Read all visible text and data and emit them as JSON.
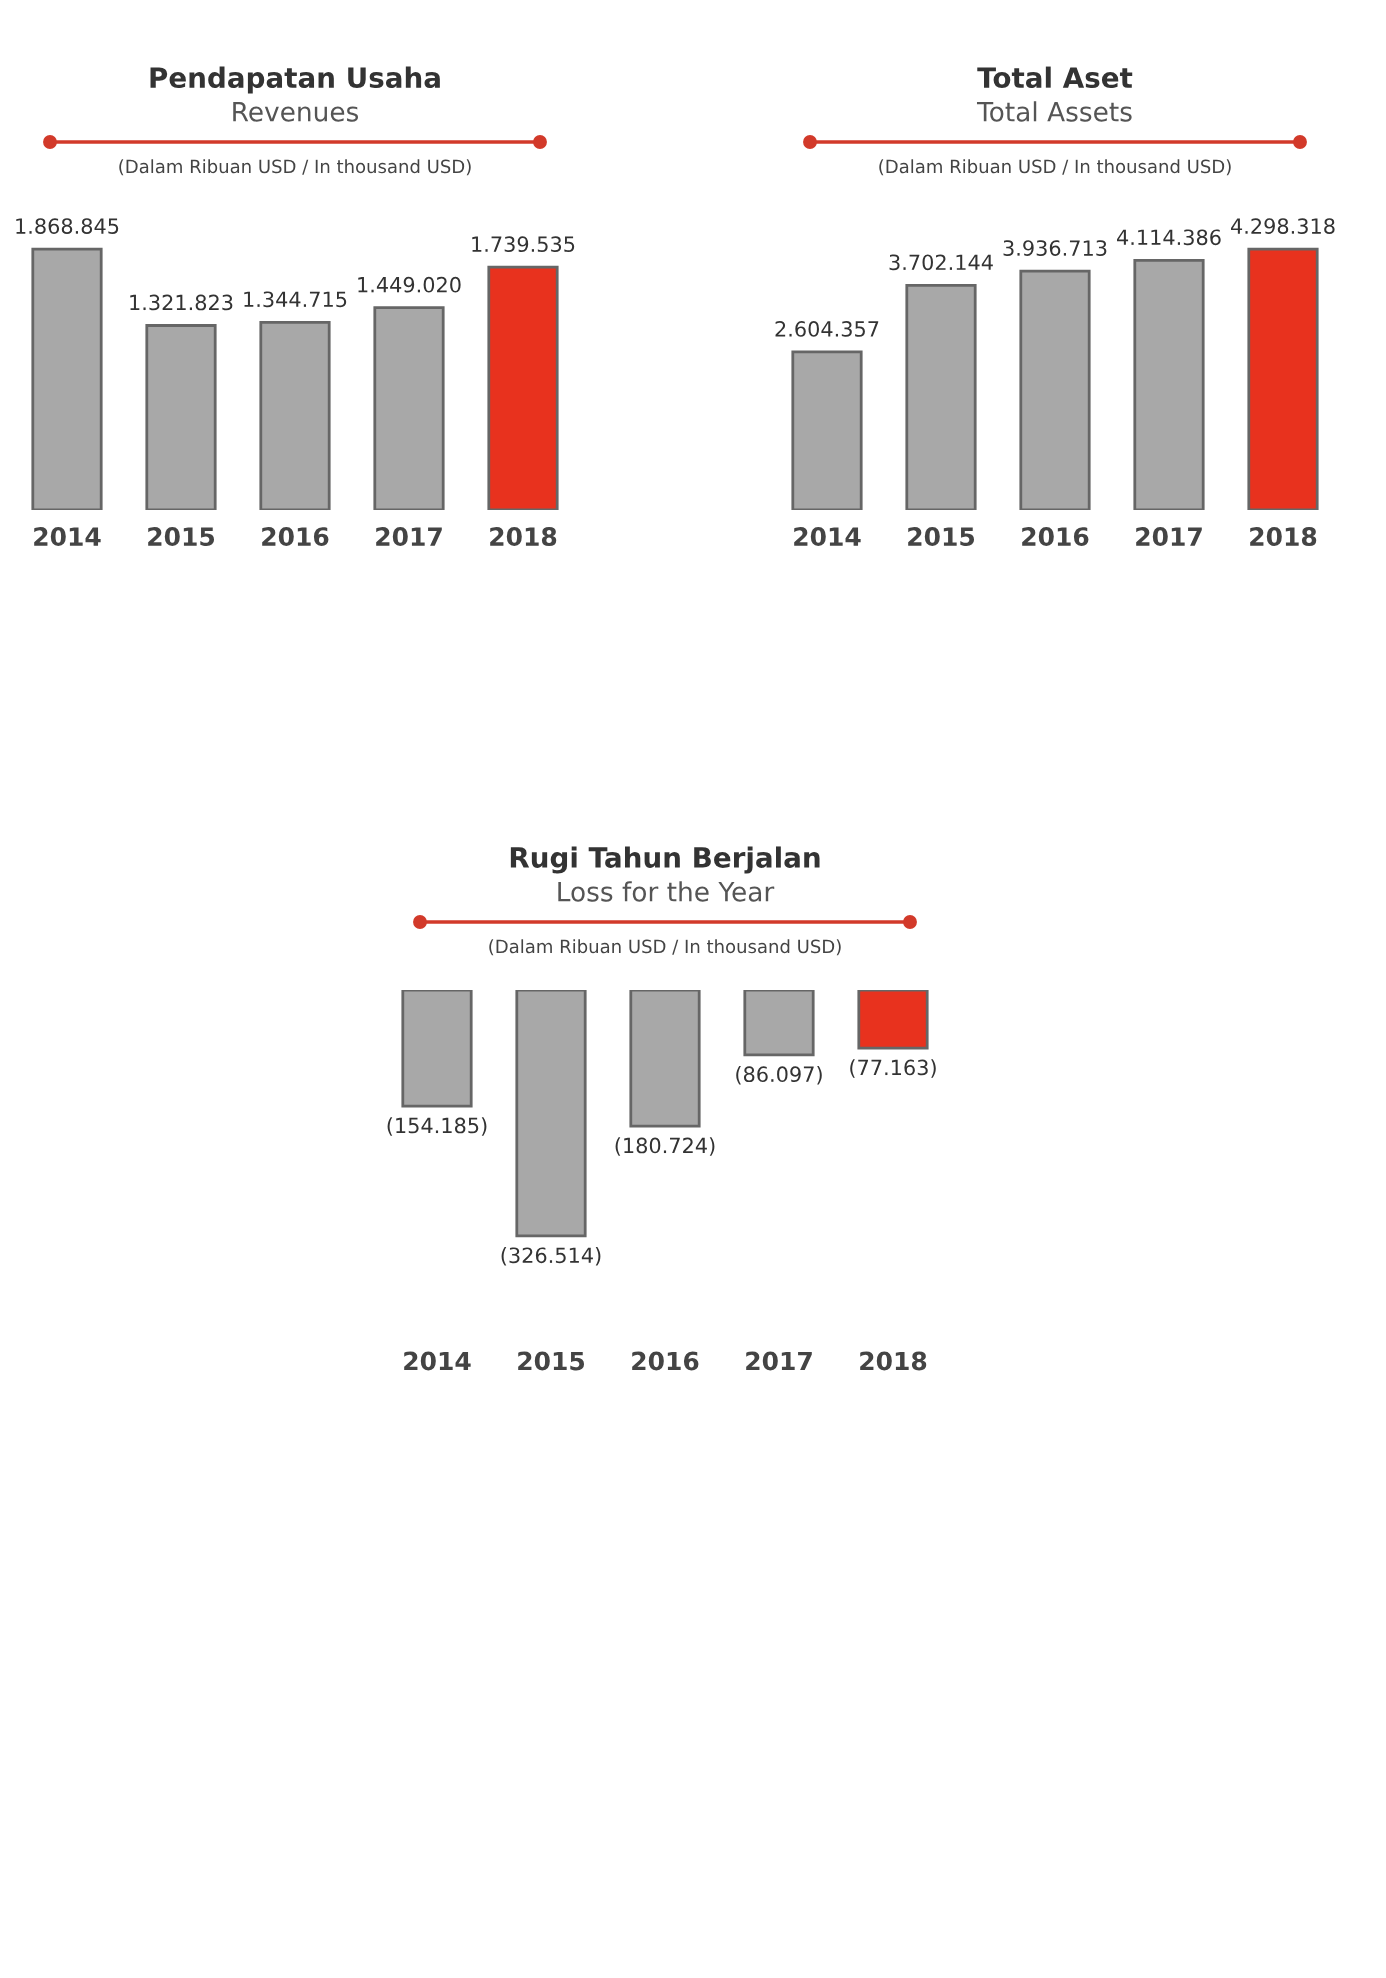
{
  "chart_data": [
    {
      "type": "bar",
      "title": "Pendapatan Usaha",
      "subtitle": "Revenues",
      "annotations": [
        "(Dalam Ribuan USD / In thousand USD)"
      ],
      "categories": [
        "2014",
        "2015",
        "2016",
        "2017",
        "2018"
      ],
      "values": [
        1868845,
        1321823,
        1344715,
        1449020,
        1739535
      ],
      "colors": [
        "#a8a8a8",
        "#a8a8a8",
        "#a8a8a8",
        "#a8a8a8",
        "#e8321e"
      ],
      "value_labels": [
        "1.868.845",
        "1.321.823",
        "1.344.715",
        "1.449.020",
        "1.739.535"
      ],
      "tick_labels": "x"
    },
    {
      "type": "bar",
      "title": "Total Aset",
      "subtitle": "Total Assets",
      "annotations": [
        "(Dalam Ribuan USD / In thousand USD)"
      ],
      "categories": [
        "2014",
        "2015",
        "2016",
        "2017",
        "2018"
      ],
      "values": [
        2604357,
        3702144,
        3936713,
        4114386,
        4298318
      ],
      "colors": [
        "#a8a8a8",
        "#a8a8a8",
        "#a8a8a8",
        "#a8a8a8",
        "#e8321e"
      ],
      "value_labels": [
        "2.604.357",
        "3.702.144",
        "3.936.713",
        "4.114.386",
        "4.298.318"
      ],
      "tick_labels": "x"
    },
    {
      "type": "bar",
      "title": "Rugi Tahun Berjalan",
      "subtitle": "Loss for the Year",
      "annotations": [
        "(Dalam Ribuan USD / In thousand USD)"
      ],
      "categories": [
        "2014",
        "2015",
        "2016",
        "2017",
        "2018"
      ],
      "values": [
        -154185,
        -326514,
        -180724,
        -86097,
        -77163
      ],
      "colors": [
        "#a8a8a8",
        "#a8a8a8",
        "#a8a8a8",
        "#a8a8a8",
        "#e8321e"
      ],
      "value_labels": [
        "(154.185)",
        "(326.514)",
        "(180.724)",
        "(86.097)",
        "(77.163)"
      ],
      "tick_labels": "x"
    }
  ]
}
